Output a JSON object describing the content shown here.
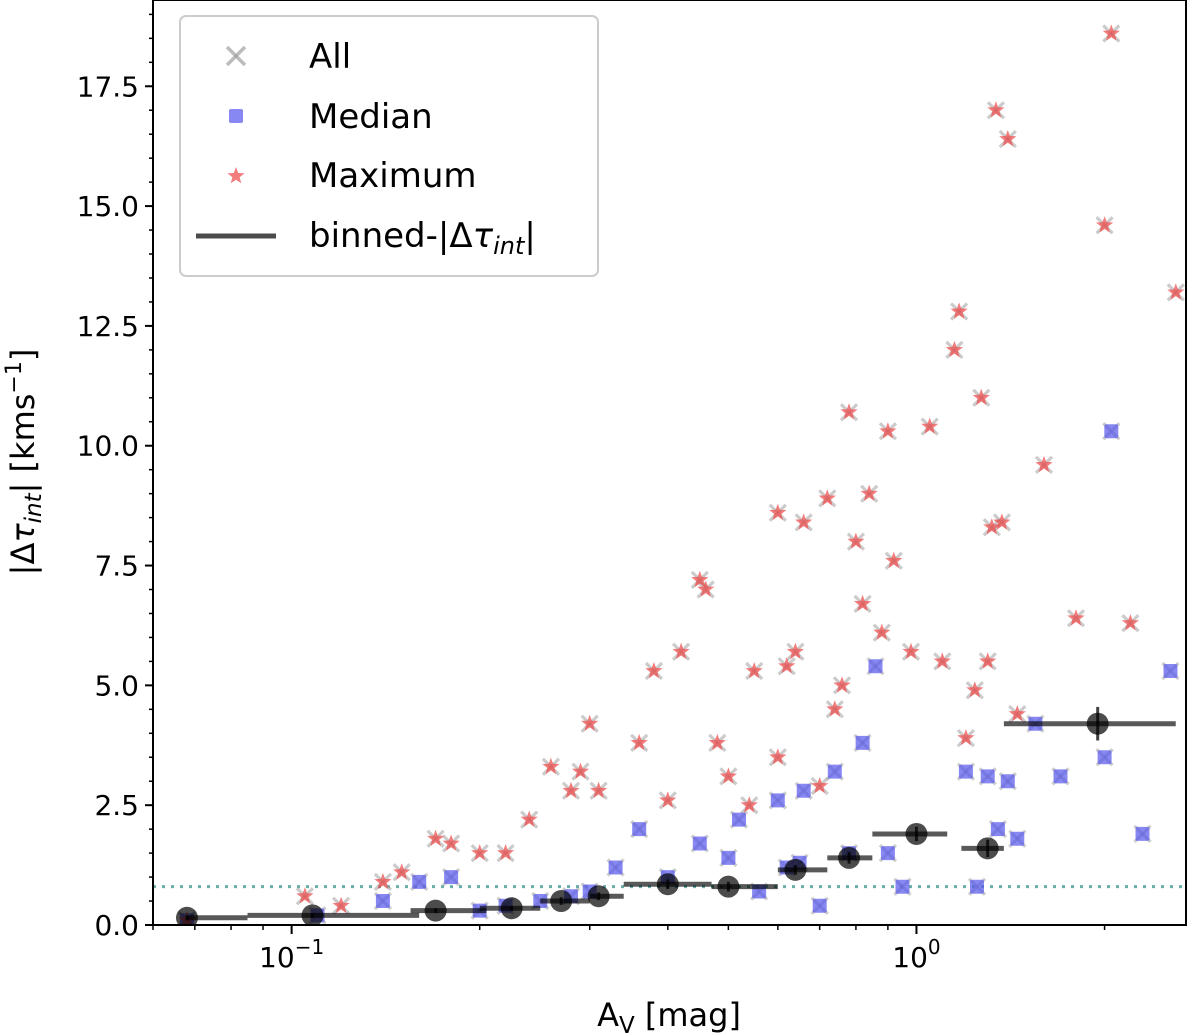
{
  "chart_data": {
    "type": "scatter",
    "xscale": "log",
    "xlim": [
      0.06,
      2.7
    ],
    "ylim": [
      0,
      19.3
    ],
    "xlabel_main": "A",
    "xlabel_sub": "V",
    "xlabel_unit": " [mag]",
    "ylabel_pre": "|Δ",
    "ylabel_tau": "τ",
    "ylabel_sub": "int",
    "ylabel_post": "| [kms",
    "ylabel_exp": "−1",
    "ylabel_close": "]",
    "x_ticks": [
      {
        "value": 0.1,
        "base": "10",
        "exp": "−1"
      },
      {
        "value": 1.0,
        "base": "10",
        "exp": "0"
      }
    ],
    "y_ticks": [
      {
        "value": 0,
        "label": "0.0"
      },
      {
        "value": 2.5,
        "label": "2.5"
      },
      {
        "value": 5,
        "label": "5.0"
      },
      {
        "value": 7.5,
        "label": "7.5"
      },
      {
        "value": 10,
        "label": "10.0"
      },
      {
        "value": 12.5,
        "label": "12.5"
      },
      {
        "value": 15,
        "label": "15.0"
      },
      {
        "value": 17.5,
        "label": "17.5"
      }
    ],
    "legend": {
      "position": "upper-left",
      "entries": [
        {
          "label": "All",
          "marker": "x"
        },
        {
          "label": "Median",
          "marker": "square"
        },
        {
          "label": "Maximum",
          "marker": "star"
        },
        {
          "label_pre": "binned-|Δ",
          "label_tau": "τ",
          "label_sub": "int",
          "label_post": "|",
          "marker": "line"
        }
      ]
    },
    "threshold": {
      "y": 0.8,
      "style": "dotted"
    },
    "colors": {
      "all": "#a0a0a0",
      "median": "#5555ee",
      "maximum": "#ee4444",
      "binned": "#000000",
      "threshold": "#6aaea8"
    },
    "series": [
      {
        "name": "Maximum",
        "points": [
          [
            0.068,
            0.1
          ],
          [
            0.105,
            0.6
          ],
          [
            0.12,
            0.4
          ],
          [
            0.14,
            0.9
          ],
          [
            0.15,
            1.1
          ],
          [
            0.17,
            1.8
          ],
          [
            0.18,
            1.7
          ],
          [
            0.2,
            1.5
          ],
          [
            0.22,
            1.5
          ],
          [
            0.24,
            2.2
          ],
          [
            0.26,
            3.3
          ],
          [
            0.28,
            2.8
          ],
          [
            0.29,
            3.2
          ],
          [
            0.31,
            2.8
          ],
          [
            0.3,
            4.2
          ],
          [
            0.36,
            3.8
          ],
          [
            0.38,
            5.3
          ],
          [
            0.4,
            2.6
          ],
          [
            0.42,
            5.7
          ],
          [
            0.45,
            7.2
          ],
          [
            0.46,
            7.0
          ],
          [
            0.48,
            3.8
          ],
          [
            0.5,
            3.1
          ],
          [
            0.54,
            2.5
          ],
          [
            0.55,
            5.3
          ],
          [
            0.6,
            3.5
          ],
          [
            0.62,
            5.4
          ],
          [
            0.64,
            5.7
          ],
          [
            0.6,
            8.6
          ],
          [
            0.66,
            8.4
          ],
          [
            0.7,
            2.9
          ],
          [
            0.72,
            8.9
          ],
          [
            0.74,
            4.5
          ],
          [
            0.76,
            5.0
          ],
          [
            0.78,
            10.7
          ],
          [
            0.8,
            8.0
          ],
          [
            0.82,
            6.7
          ],
          [
            0.84,
            9.0
          ],
          [
            0.88,
            6.1
          ],
          [
            0.9,
            10.3
          ],
          [
            0.92,
            7.6
          ],
          [
            0.98,
            5.7
          ],
          [
            1.05,
            10.4
          ],
          [
            1.1,
            5.5
          ],
          [
            1.15,
            12.0
          ],
          [
            1.17,
            12.8
          ],
          [
            1.2,
            3.9
          ],
          [
            1.24,
            4.9
          ],
          [
            1.27,
            11.0
          ],
          [
            1.3,
            5.5
          ],
          [
            1.32,
            8.3
          ],
          [
            1.34,
            17.0
          ],
          [
            1.37,
            8.4
          ],
          [
            1.4,
            16.4
          ],
          [
            1.45,
            4.4
          ],
          [
            1.6,
            9.6
          ],
          [
            1.8,
            6.4
          ],
          [
            2.0,
            14.6
          ],
          [
            2.05,
            18.6
          ],
          [
            2.2,
            6.3
          ],
          [
            2.6,
            13.2
          ]
        ]
      },
      {
        "name": "Median",
        "points": [
          [
            0.068,
            0.1
          ],
          [
            0.11,
            0.2
          ],
          [
            0.14,
            0.5
          ],
          [
            0.16,
            0.9
          ],
          [
            0.18,
            1.0
          ],
          [
            0.2,
            0.3
          ],
          [
            0.22,
            0.4
          ],
          [
            0.25,
            0.5
          ],
          [
            0.28,
            0.6
          ],
          [
            0.3,
            0.7
          ],
          [
            0.33,
            1.2
          ],
          [
            0.36,
            2.0
          ],
          [
            0.4,
            1.0
          ],
          [
            0.45,
            1.7
          ],
          [
            0.5,
            1.4
          ],
          [
            0.52,
            2.2
          ],
          [
            0.56,
            0.7
          ],
          [
            0.6,
            2.6
          ],
          [
            0.62,
            1.2
          ],
          [
            0.65,
            1.3
          ],
          [
            0.66,
            2.8
          ],
          [
            0.7,
            0.4
          ],
          [
            0.74,
            3.2
          ],
          [
            0.78,
            1.5
          ],
          [
            0.82,
            3.8
          ],
          [
            0.86,
            5.4
          ],
          [
            0.9,
            1.5
          ],
          [
            0.95,
            0.8
          ],
          [
            1.2,
            3.2
          ],
          [
            1.25,
            0.8
          ],
          [
            1.3,
            3.1
          ],
          [
            1.35,
            2.0
          ],
          [
            1.4,
            3.0
          ],
          [
            1.45,
            1.8
          ],
          [
            1.55,
            4.2
          ],
          [
            1.7,
            3.1
          ],
          [
            2.0,
            3.5
          ],
          [
            2.05,
            10.3
          ],
          [
            2.3,
            1.9
          ],
          [
            2.55,
            5.3
          ]
        ]
      },
      {
        "name": "Binned",
        "points": [
          {
            "x": 0.068,
            "y": 0.15,
            "xerr": [
              0.068,
              0.085
            ],
            "yerr": 0.05
          },
          {
            "x": 0.108,
            "y": 0.2,
            "xerr": [
              0.085,
              0.16
            ],
            "yerr": 0.05
          },
          {
            "x": 0.17,
            "y": 0.3,
            "xerr": [
              0.155,
              0.205
            ],
            "yerr": 0.05
          },
          {
            "x": 0.225,
            "y": 0.35,
            "xerr": [
              0.2,
              0.25
            ],
            "yerr": 0.05
          },
          {
            "x": 0.27,
            "y": 0.5,
            "xerr": [
              0.25,
              0.3
            ],
            "yerr": 0.08
          },
          {
            "x": 0.31,
            "y": 0.6,
            "xerr": [
              0.3,
              0.34
            ],
            "yerr": 0.08
          },
          {
            "x": 0.4,
            "y": 0.85,
            "xerr": [
              0.34,
              0.47
            ],
            "yerr": 0.1
          },
          {
            "x": 0.5,
            "y": 0.8,
            "xerr": [
              0.47,
              0.6
            ],
            "yerr": 0.1
          },
          {
            "x": 0.64,
            "y": 1.15,
            "xerr": [
              0.6,
              0.72
            ],
            "yerr": 0.1
          },
          {
            "x": 0.78,
            "y": 1.4,
            "xerr": [
              0.72,
              0.85
            ],
            "yerr": 0.12
          },
          {
            "x": 1.0,
            "y": 1.9,
            "xerr": [
              0.85,
              1.12
            ],
            "yerr": 0.15
          },
          {
            "x": 1.3,
            "y": 1.6,
            "xerr": [
              1.18,
              1.38
            ],
            "yerr": 0.18
          },
          {
            "x": 1.95,
            "y": 4.2,
            "xerr": [
              1.38,
              2.6
            ],
            "yerr": 0.35
          }
        ]
      }
    ]
  }
}
